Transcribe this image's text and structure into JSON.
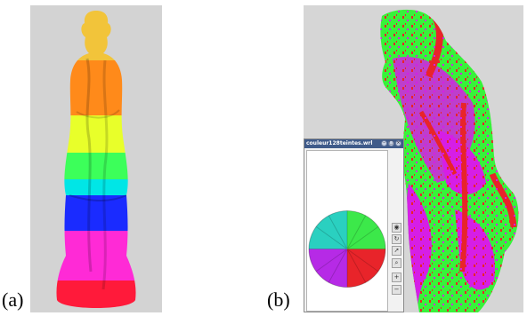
{
  "labels": {
    "a": "(a)",
    "b": "(b)"
  },
  "viewer": {
    "title": "couleur128teintes.wrl",
    "controls": {
      "minimize": "–",
      "maximize": "□",
      "close": "×"
    },
    "tools": [
      "eye-icon",
      "rotate-icon",
      "pointer-icon",
      "zoom-icon",
      "plus-icon",
      "minus-icon"
    ]
  },
  "colors": {
    "background_gray": "#d3d3d3",
    "band_yellow_light": "#f2c43a",
    "band_orange": "#ff8a1a",
    "band_yellow": "#e8ff2a",
    "band_green": "#3cff5a",
    "band_cyan": "#00e6e6",
    "band_blue": "#1a2bff",
    "band_magenta": "#ff2ad6",
    "band_red": "#ff1a3a",
    "statue_green": "#38f23a",
    "statue_magenta": "#d61ee6",
    "statue_red": "#e8242a"
  }
}
